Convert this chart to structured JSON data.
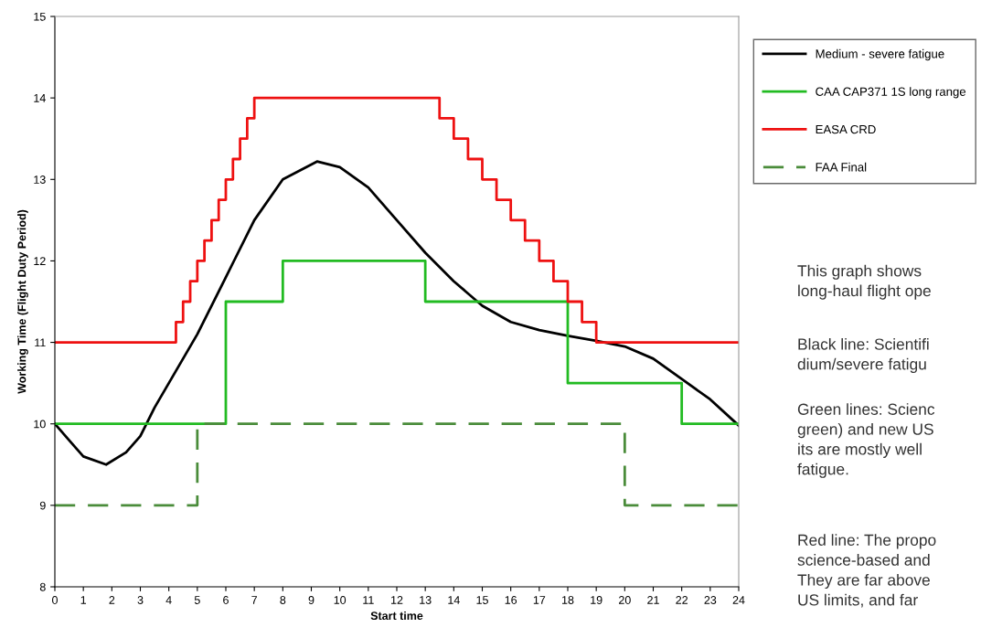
{
  "chart_data": {
    "type": "line",
    "xlabel": "Start time",
    "ylabel": "Working Time (Flight Duty Period)",
    "xlim": [
      0,
      24
    ],
    "xticks": [
      0,
      1,
      2,
      3,
      4,
      5,
      6,
      7,
      8,
      9,
      10,
      11,
      12,
      13,
      14,
      15,
      16,
      17,
      18,
      19,
      20,
      21,
      22,
      23,
      24
    ],
    "ylim": [
      8,
      15
    ],
    "yticks": [
      8,
      9,
      10,
      11,
      12,
      13,
      14,
      15
    ],
    "grid": false,
    "legend": "right",
    "series": [
      {
        "name": "Medium - severe fatigue",
        "color": "#000000",
        "line_style": "solid",
        "x": [
          0,
          0.5,
          1,
          1.8,
          2.5,
          3,
          3.5,
          4,
          5,
          6,
          7,
          8,
          9.2,
          10,
          11,
          12,
          13,
          14,
          15,
          16,
          17,
          18,
          19,
          20,
          21,
          22,
          23,
          24
        ],
        "values": [
          10,
          9.8,
          9.6,
          9.5,
          9.65,
          9.85,
          10.2,
          10.5,
          11.1,
          11.8,
          12.5,
          13.0,
          13.22,
          13.15,
          12.9,
          12.5,
          12.1,
          11.75,
          11.45,
          11.25,
          11.15,
          11.08,
          11.02,
          10.95,
          10.8,
          10.55,
          10.3,
          9.98
        ]
      },
      {
        "name": "CAA CAP371 1S long range",
        "type": "step",
        "color": "#22bb22",
        "line_style": "solid",
        "x": [
          0,
          6,
          8,
          13,
          18,
          22,
          24
        ],
        "values": [
          10,
          11.5,
          12,
          11.5,
          10.5,
          10,
          10
        ]
      },
      {
        "name": "EASA CRD",
        "type": "step",
        "color": "#ee1111",
        "line_style": "solid",
        "x": [
          0,
          4.25,
          4.5,
          4.75,
          5,
          5.25,
          5.5,
          5.75,
          6,
          6.25,
          6.5,
          6.75,
          7,
          13.5,
          14,
          14.5,
          15,
          15.5,
          16,
          16.5,
          17,
          17.5,
          18,
          18.5,
          19,
          24
        ],
        "values": [
          11,
          11.25,
          11.5,
          11.75,
          12,
          12.25,
          12.5,
          12.75,
          13,
          13.25,
          13.5,
          13.75,
          14,
          13.75,
          13.5,
          13.25,
          13,
          12.75,
          12.5,
          12.25,
          12,
          11.75,
          11.5,
          11.25,
          11,
          11
        ]
      },
      {
        "name": "FAA Final",
        "type": "step",
        "color": "#4a8c3a",
        "line_style": "dashed",
        "x": [
          0,
          5,
          20,
          24
        ],
        "values": [
          9,
          10,
          9,
          9
        ]
      }
    ],
    "annotations": [
      "This graph shows\nlong-haul flight ope",
      "Black line: Scientifi\ndium/severe fatigu",
      "Green lines: Scienc\ngreen) and new US\nits are mostly well\nfatigue.",
      "Red line: The propo\nscience-based and\nThey are far above\nUS limits, and far"
    ]
  }
}
